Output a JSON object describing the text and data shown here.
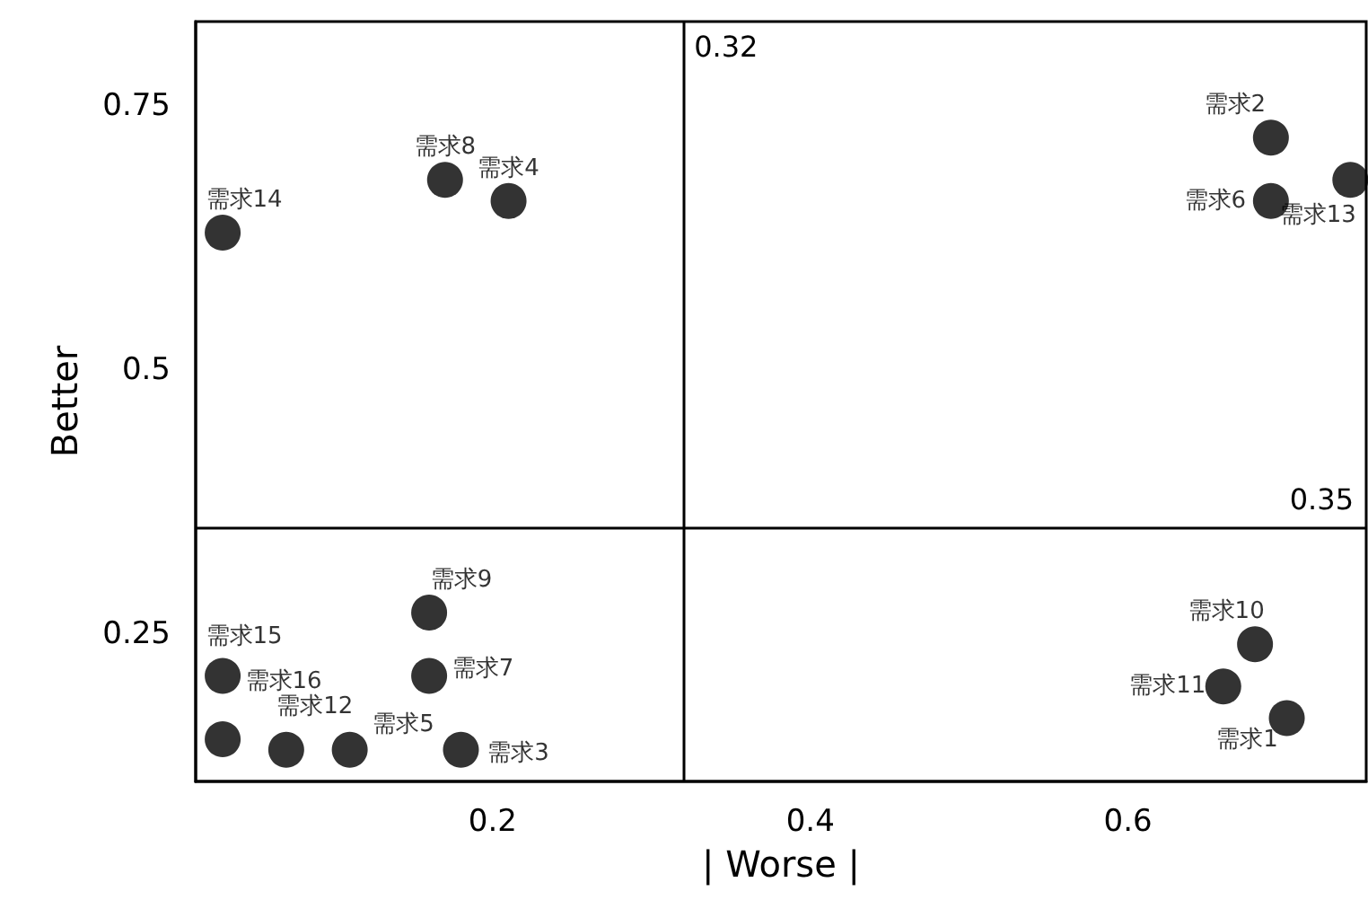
{
  "chart_data": {
    "type": "scatter",
    "xlabel": "| Worse |",
    "ylabel": "Better",
    "x": [
      0.7,
      0.69,
      0.18,
      0.21,
      0.11,
      0.69,
      0.16,
      0.17,
      0.16,
      0.68,
      0.66,
      0.07,
      0.74,
      0.03,
      0.03,
      0.03
    ],
    "values": [
      0.17,
      0.72,
      0.14,
      0.66,
      0.14,
      0.66,
      0.21,
      0.68,
      0.27,
      0.24,
      0.2,
      0.14,
      0.68,
      0.63,
      0.21,
      0.15
    ],
    "color": "#000000",
    "marker": "circle",
    "xlim": [
      0.013,
      0.75
    ],
    "ylim": [
      0.11,
      0.83
    ],
    "xticks": [
      0.2,
      0.4,
      0.6
    ],
    "yticks": [
      0.25,
      0.5,
      0.75
    ],
    "grid": false,
    "ref_lines": [
      {
        "axis": "x",
        "value": 0.32,
        "label": "0.32",
        "color": "#000000"
      },
      {
        "axis": "y",
        "value": 0.35,
        "label": "0.35",
        "color": "#000000"
      }
    ],
    "annotations": [
      {
        "text": "需求1",
        "x": 0.7,
        "y": 0.17
      },
      {
        "text": "需求2",
        "x": 0.69,
        "y": 0.72
      },
      {
        "text": "需求3",
        "x": 0.18,
        "y": 0.14
      },
      {
        "text": "需求4",
        "x": 0.21,
        "y": 0.66
      },
      {
        "text": "需求5",
        "x": 0.11,
        "y": 0.14
      },
      {
        "text": "需求6",
        "x": 0.69,
        "y": 0.66
      },
      {
        "text": "需求7",
        "x": 0.16,
        "y": 0.21
      },
      {
        "text": "需求8",
        "x": 0.17,
        "y": 0.68
      },
      {
        "text": "需求9",
        "x": 0.16,
        "y": 0.27
      },
      {
        "text": "需求10",
        "x": 0.68,
        "y": 0.24
      },
      {
        "text": "需求11",
        "x": 0.66,
        "y": 0.2
      },
      {
        "text": "需求12",
        "x": 0.07,
        "y": 0.14
      },
      {
        "text": "需求13",
        "x": 0.74,
        "y": 0.68
      },
      {
        "text": "需求14",
        "x": 0.03,
        "y": 0.63
      },
      {
        "text": "需求15",
        "x": 0.03,
        "y": 0.21
      },
      {
        "text": "需求16",
        "x": 0.03,
        "y": 0.15
      }
    ]
  }
}
